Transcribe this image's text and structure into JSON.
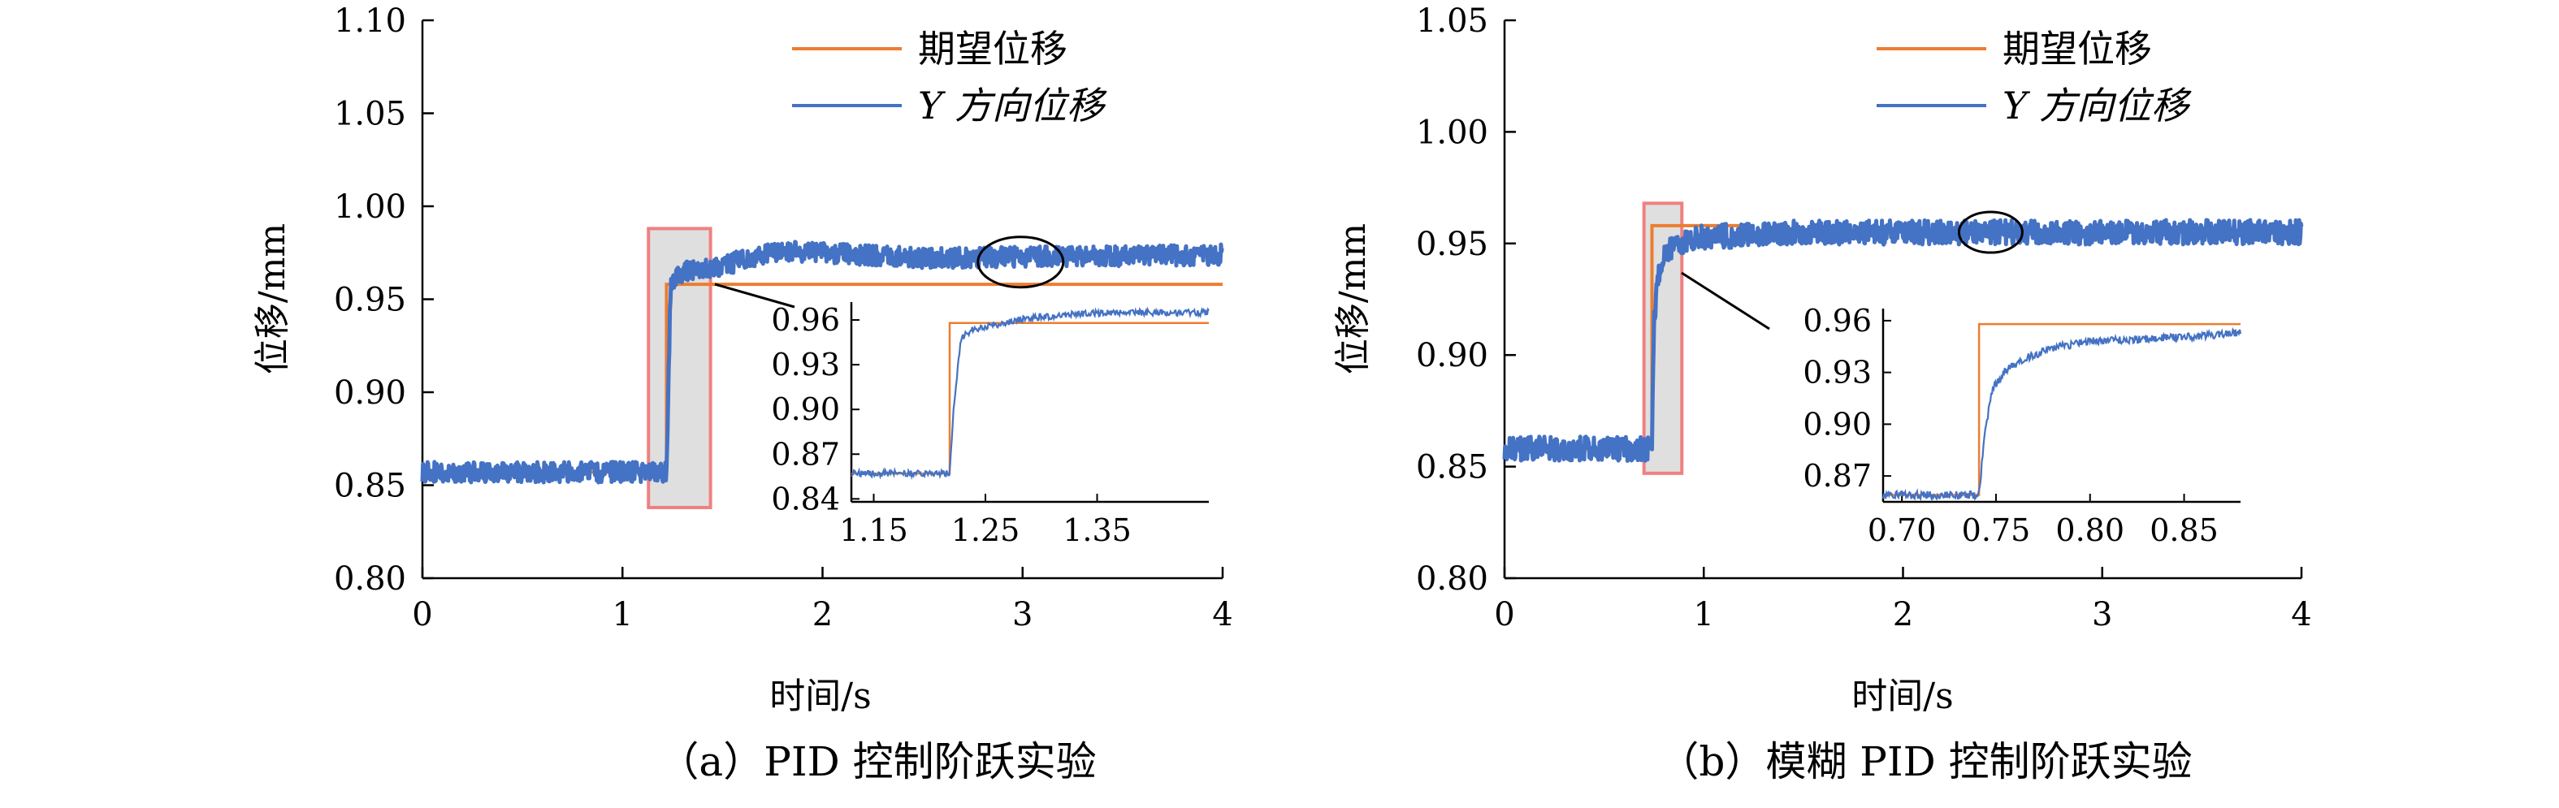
{
  "colors": {
    "desired": "#ed7d31",
    "actual": "#4472c4",
    "highlight_box": "#f08080",
    "axis": "#000000"
  },
  "chart_data": [
    {
      "type": "line",
      "caption": "（a）PID 控制阶跃实验",
      "xlabel": "时间/s",
      "ylabel": "位移/mm",
      "xlim": [
        0,
        4
      ],
      "ylim": [
        0.8,
        1.1
      ],
      "x_ticks": [
        "0",
        "1",
        "2",
        "3",
        "4"
      ],
      "y_ticks": [
        "0.80",
        "0.85",
        "0.90",
        "0.95",
        "1.00",
        "1.05",
        "1.10"
      ],
      "legend": {
        "position": "top-right",
        "entries": [
          "期望位移",
          "Y 方向位移"
        ]
      },
      "series": [
        {
          "name": "期望位移",
          "x": [
            0,
            1.22,
            1.22,
            4.0
          ],
          "y": [
            0.857,
            0.857,
            0.958,
            0.958
          ]
        },
        {
          "name": "Y 方向位移",
          "x": [
            0,
            1.22,
            1.24,
            1.28,
            1.35,
            1.5,
            1.6,
            1.8,
            2.0,
            2.5,
            3.0,
            3.5,
            4.0
          ],
          "y": [
            0.857,
            0.857,
            0.955,
            0.964,
            0.966,
            0.967,
            0.972,
            0.976,
            0.975,
            0.972,
            0.973,
            0.973,
            0.974
          ]
        }
      ],
      "highlight": {
        "x": [
          1.13,
          1.44
        ],
        "y": [
          0.838,
          0.988
        ]
      },
      "ellipse_marker": {
        "x": 2.99,
        "y": 0.97
      },
      "inset": {
        "xlim": [
          1.13,
          1.45
        ],
        "ylim": [
          0.838,
          0.972
        ],
        "x_ticks": [
          "1.15",
          "1.25",
          "1.35"
        ],
        "y_ticks": [
          "0.84",
          "0.87",
          "0.90",
          "0.93",
          "0.96"
        ],
        "series": [
          {
            "name": "期望位移",
            "x": [
              1.13,
              1.218,
              1.218,
              1.45
            ],
            "y": [
              0.857,
              0.857,
              0.958,
              0.958
            ]
          },
          {
            "name": "Y 方向位移",
            "x": [
              1.13,
              1.218,
              1.222,
              1.228,
              1.24,
              1.26,
              1.28,
              1.3,
              1.33,
              1.36,
              1.4,
              1.45
            ],
            "y": [
              0.857,
              0.857,
              0.905,
              0.948,
              0.954,
              0.957,
              0.96,
              0.962,
              0.964,
              0.965,
              0.965,
              0.965
            ]
          }
        ]
      }
    },
    {
      "type": "line",
      "caption": "（b）模糊 PID 控制阶跃实验",
      "xlabel": "时间/s",
      "ylabel": "位移/mm",
      "xlim": [
        0,
        4
      ],
      "ylim": [
        0.8,
        1.05
      ],
      "x_ticks": [
        "0",
        "1",
        "2",
        "3",
        "4"
      ],
      "y_ticks": [
        "0.80",
        "0.85",
        "0.90",
        "0.95",
        "1.00",
        "1.05"
      ],
      "legend": {
        "position": "top-right",
        "entries": [
          "期望位移",
          "Y 方向位移"
        ]
      },
      "series": [
        {
          "name": "期望位移",
          "x": [
            0,
            0.74,
            0.74,
            1.22
          ],
          "y": [
            0.858,
            0.858,
            0.958,
            0.958
          ]
        },
        {
          "name": "Y 方向位移",
          "x": [
            0,
            0.74,
            0.75,
            0.77,
            0.8,
            0.85,
            1.0,
            1.5,
            2.0,
            3.0,
            4.0
          ],
          "y": [
            0.858,
            0.858,
            0.915,
            0.935,
            0.945,
            0.95,
            0.953,
            0.955,
            0.955,
            0.955,
            0.955
          ]
        }
      ],
      "highlight": {
        "x": [
          0.7,
          0.89
        ],
        "y": [
          0.847,
          0.968
        ]
      },
      "ellipse_marker": {
        "x": 2.44,
        "y": 0.955
      },
      "inset": {
        "xlim": [
          0.69,
          0.88
        ],
        "ylim": [
          0.855,
          0.967
        ],
        "x_ticks": [
          "0.70",
          "0.75",
          "0.80",
          "0.85"
        ],
        "y_ticks": [
          "0.87",
          "0.90",
          "0.93",
          "0.96"
        ],
        "series": [
          {
            "name": "期望位移",
            "x": [
              0.69,
              0.741,
              0.741,
              0.88
            ],
            "y": [
              0.859,
              0.859,
              0.958,
              0.958
            ]
          },
          {
            "name": "Y 方向位移",
            "x": [
              0.69,
              0.741,
              0.744,
              0.748,
              0.755,
              0.765,
              0.78,
              0.8,
              0.82,
              0.84,
              0.86,
              0.88
            ],
            "y": [
              0.859,
              0.859,
              0.895,
              0.92,
              0.931,
              0.938,
              0.944,
              0.948,
              0.949,
              0.95,
              0.951,
              0.953
            ]
          }
        ]
      }
    }
  ]
}
